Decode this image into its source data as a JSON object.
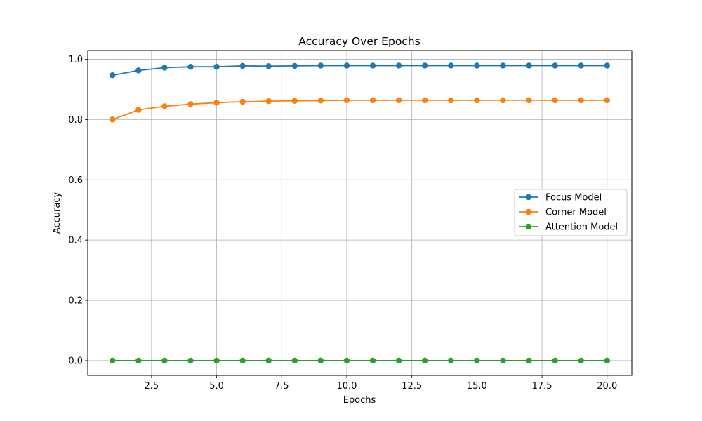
{
  "chart_data": {
    "type": "line",
    "title": "Accuracy Over Epochs",
    "xlabel": "Epochs",
    "ylabel": "Accuracy",
    "x": [
      1,
      2,
      3,
      4,
      5,
      6,
      7,
      8,
      9,
      10,
      11,
      12,
      13,
      14,
      15,
      16,
      17,
      18,
      19,
      20
    ],
    "xlim": [
      0.05,
      20.95
    ],
    "ylim": [
      -0.049,
      1.029
    ],
    "xticks": [
      2.5,
      5.0,
      7.5,
      10.0,
      12.5,
      15.0,
      17.5,
      20.0
    ],
    "xtick_labels": [
      "2.5",
      "5.0",
      "7.5",
      "10.0",
      "12.5",
      "15.0",
      "17.5",
      "20.0"
    ],
    "yticks": [
      0.0,
      0.2,
      0.4,
      0.6,
      0.8,
      1.0
    ],
    "ytick_labels": [
      "0.0",
      "0.2",
      "0.4",
      "0.6",
      "0.8",
      "1.0"
    ],
    "grid": true,
    "legend_position": "center-right",
    "series": [
      {
        "name": "Focus Model",
        "color": "#1f77b4",
        "values": [
          0.947,
          0.963,
          0.972,
          0.975,
          0.975,
          0.978,
          0.977,
          0.978,
          0.979,
          0.979,
          0.979,
          0.979,
          0.979,
          0.979,
          0.979,
          0.979,
          0.979,
          0.979,
          0.979,
          0.979
        ]
      },
      {
        "name": "Corner Model",
        "color": "#ff7f0e",
        "values": [
          0.8,
          0.832,
          0.844,
          0.851,
          0.856,
          0.859,
          0.861,
          0.862,
          0.863,
          0.864,
          0.864,
          0.864,
          0.864,
          0.864,
          0.864,
          0.864,
          0.864,
          0.864,
          0.864,
          0.864
        ]
      },
      {
        "name": "Attention Model",
        "color": "#2ca02c",
        "values": [
          0,
          0,
          0,
          0,
          0,
          0,
          0,
          0,
          0,
          0,
          0,
          0,
          0,
          0,
          0,
          0,
          0,
          0,
          0,
          0
        ]
      }
    ]
  }
}
